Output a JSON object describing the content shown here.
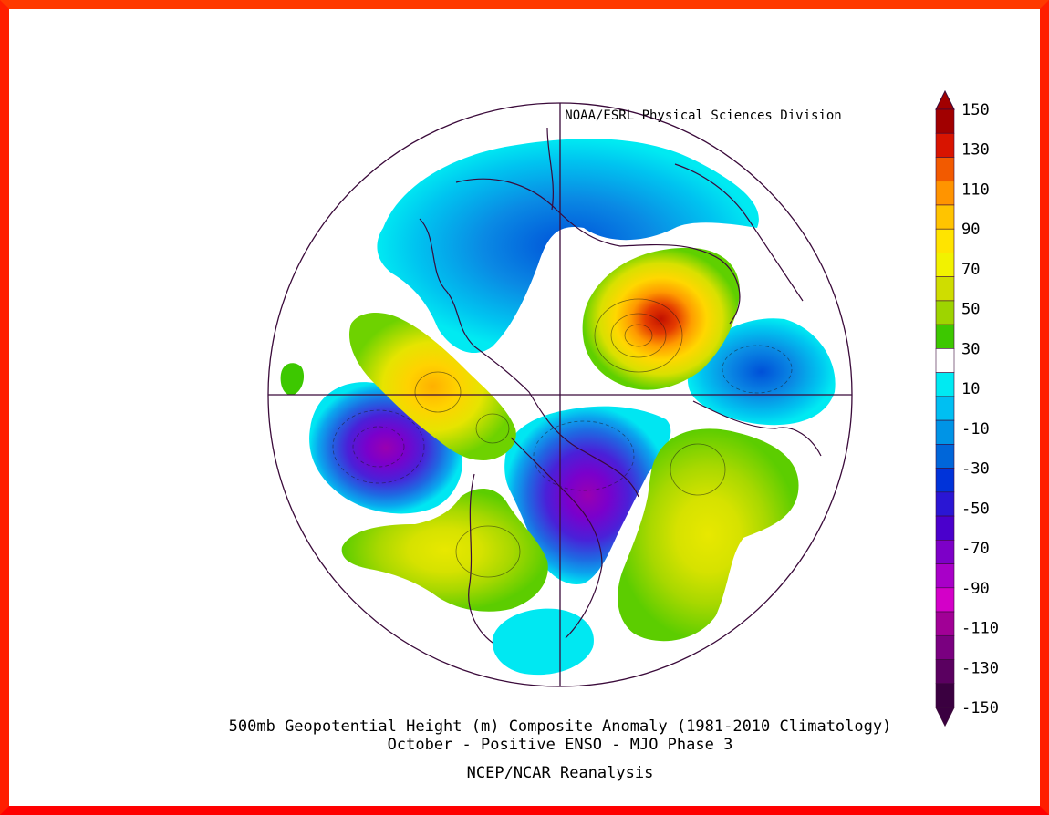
{
  "header": {
    "credit": "NOAA/ESRL Physical Sciences Division"
  },
  "footer": {
    "line1": "500mb Geopotential Height (m) Composite Anomaly (1981-2010 Climatology)",
    "line2": "October - Positive ENSO - MJO Phase 3",
    "line3": "NCEP/NCAR Reanalysis"
  },
  "colorbar": {
    "labels": [
      "150",
      "130",
      "110",
      "90",
      "70",
      "50",
      "30",
      "10",
      "-10",
      "-30",
      "-50",
      "-70",
      "-90",
      "-110",
      "-130",
      "-150"
    ],
    "colors": [
      "#a10000",
      "#d81400",
      "#f25a00",
      "#ff9400",
      "#ffc400",
      "#ffe400",
      "#f2f200",
      "#cfdd00",
      "#9ed400",
      "#3dc800",
      "#ffffff",
      "#00eaf2",
      "#00bff2",
      "#0094e6",
      "#0066d9",
      "#0033d9",
      "#2a16d4",
      "#4a00cc",
      "#7d00c8",
      "#a800c8",
      "#d300c8",
      "#a10096",
      "#7a0080",
      "#5a0060",
      "#3a0040"
    ],
    "top_arrow_color": "#a10000",
    "bottom_arrow_color": "#3a0040"
  },
  "colors": {
    "frame": "#ff1e00",
    "map_outline": "#3a0a3a"
  }
}
